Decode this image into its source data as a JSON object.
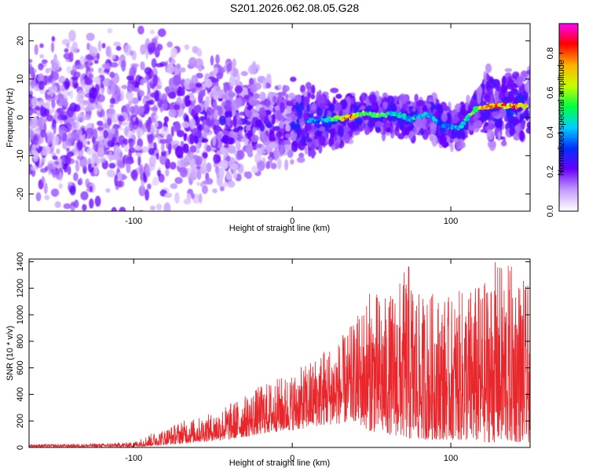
{
  "title": "S201.2026.062.08.05.G28",
  "colors": {
    "snr_line": "#e8262b",
    "axis": "#000000"
  },
  "chart_data": [
    {
      "type": "heatmap",
      "title": "S201.2026.062.08.05.G28",
      "xlabel": "Height of straight line (km)",
      "ylabel": "Frequency (Hz)",
      "xlim": [
        -166,
        150
      ],
      "ylim": [
        -24.5,
        24.5
      ],
      "x_ticks": [
        -100,
        0,
        100
      ],
      "x_tick_labels": [
        "-100",
        "0",
        "100"
      ],
      "y_ticks": [
        -20,
        -10,
        0,
        10,
        20
      ],
      "y_tick_labels": [
        "-20",
        "-10",
        "0",
        "10",
        "20"
      ],
      "colorbar": {
        "label": "Normalized spectral amplitude",
        "range": [
          0.0,
          0.95
        ],
        "ticks": [
          0.0,
          0.2,
          0.4,
          0.6,
          0.8
        ],
        "tick_labels": [
          "0.0",
          "0.2",
          "0.4",
          "0.6",
          "0.8"
        ],
        "colormap": [
          "#ffffff",
          "#c39bff",
          "#6a00ff",
          "#0030ff",
          "#00d0ff",
          "#00ff40",
          "#c8ff00",
          "#ffb000",
          "#ff0000",
          "#ff00ff"
        ]
      },
      "ridge": {
        "description": "dominant frequency trace",
        "x": [
          15,
          25,
          35,
          45,
          55,
          65,
          75,
          85,
          95,
          105,
          115,
          125
        ],
        "freq": [
          -1,
          -0.5,
          0,
          1,
          0.5,
          1,
          -0.5,
          1,
          -2,
          -3,
          2,
          3
        ],
        "amplitude": [
          0.4,
          0.5,
          0.85,
          0.6,
          0.55,
          0.5,
          0.45,
          0.5,
          0.35,
          0.45,
          0.6,
          0.8
        ]
      }
    },
    {
      "type": "line",
      "title": "",
      "xlabel": "Height of straight line (km)",
      "ylabel": "SNR (10 * v/v)",
      "xlim": [
        -166,
        150
      ],
      "ylim": [
        0,
        1420
      ],
      "x_ticks": [
        -100,
        0,
        100
      ],
      "x_tick_labels": [
        "-100",
        "0",
        "100"
      ],
      "y_ticks": [
        0,
        200,
        400,
        600,
        800,
        1000,
        1200,
        1400
      ],
      "y_tick_labels": [
        "0",
        "200",
        "400",
        "600",
        "800",
        "1000",
        "1200",
        "1400"
      ],
      "series": [
        {
          "name": "SNR",
          "color": "#e8262b",
          "envelope_x": [
            -166,
            -140,
            -120,
            -100,
            -90,
            -80,
            -70,
            -60,
            -50,
            -40,
            -30,
            -20,
            -10,
            0,
            10,
            20,
            30,
            40,
            45,
            50,
            60,
            70,
            73,
            80,
            90,
            100,
            110,
            120,
            128,
            140,
            150
          ],
          "envelope_peak": [
            25,
            25,
            30,
            40,
            100,
            140,
            200,
            220,
            260,
            330,
            390,
            470,
            520,
            560,
            640,
            760,
            820,
            960,
            1120,
            1200,
            1130,
            1310,
            1420,
            1150,
            1180,
            1130,
            1220,
            1240,
            1400,
            1380,
            1200
          ],
          "envelope_floor": [
            5,
            5,
            5,
            5,
            10,
            20,
            30,
            40,
            50,
            60,
            80,
            100,
            120,
            130,
            150,
            170,
            180,
            200,
            150,
            120,
            100,
            80,
            60,
            60,
            60,
            60,
            50,
            40,
            40,
            40,
            40
          ]
        }
      ]
    }
  ]
}
